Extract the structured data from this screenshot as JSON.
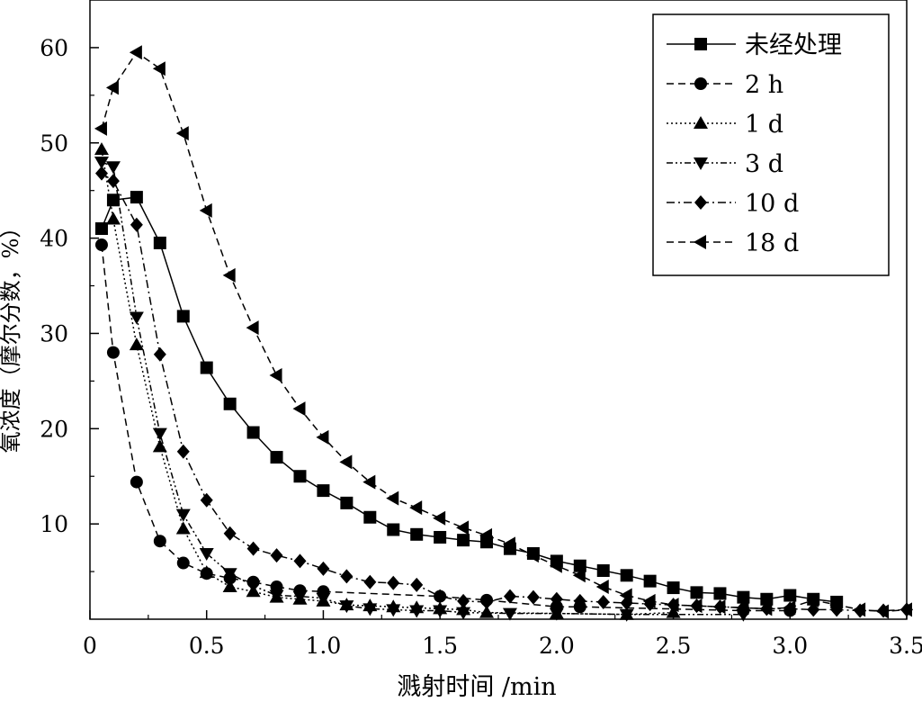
{
  "chart_data": {
    "type": "line",
    "title": "",
    "xlabel": "溅射时间 /min",
    "ylabel": "氧浓度（摩尔分数，%）",
    "xlim": [
      0,
      3.5
    ],
    "ylim": [
      0,
      65
    ],
    "xticks": [
      "0",
      "0.5",
      "1.0",
      "1.5",
      "2.0",
      "2.5",
      "3.0",
      "3.5"
    ],
    "yticks": [
      "10",
      "20",
      "30",
      "40",
      "50",
      "60"
    ],
    "grid": false,
    "legend_position": "top-right",
    "series": [
      {
        "name": "未经处理",
        "marker": "square",
        "dash": "solid",
        "x": [
          0.05,
          0.1,
          0.2,
          0.3,
          0.4,
          0.5,
          0.6,
          0.7,
          0.8,
          0.9,
          1.0,
          1.1,
          1.2,
          1.3,
          1.4,
          1.5,
          1.6,
          1.7,
          1.8,
          1.9,
          2.0,
          2.1,
          2.2,
          2.3,
          2.4,
          2.5,
          2.6,
          2.7,
          2.8,
          2.9,
          3.0,
          3.1,
          3.2
        ],
        "y": [
          41,
          44,
          44.3,
          39.5,
          31.8,
          26.4,
          22.6,
          19.6,
          17.0,
          15.0,
          13.5,
          12.2,
          10.7,
          9.4,
          8.9,
          8.6,
          8.3,
          8.1,
          7.4,
          6.9,
          6.1,
          5.6,
          5.1,
          4.6,
          4.0,
          3.3,
          2.8,
          2.7,
          2.3,
          2.1,
          2.5,
          2.1,
          1.8
        ]
      },
      {
        "name": "2 h",
        "marker": "circle",
        "dash": "dashed",
        "x": [
          0.05,
          0.1,
          0.2,
          0.3,
          0.4,
          0.5,
          0.6,
          0.7,
          0.8,
          0.9,
          1.0,
          1.5,
          1.7,
          2.0,
          2.1,
          2.8,
          3.0
        ],
        "y": [
          39.3,
          28,
          14.4,
          8.2,
          5.9,
          4.8,
          4.3,
          3.9,
          3.4,
          3.0,
          2.9,
          2.4,
          2.0,
          1.3,
          1.3,
          0.9,
          0.9
        ]
      },
      {
        "name": "1 d",
        "marker": "triangle-up",
        "dash": "dotted",
        "x": [
          0.05,
          0.1,
          0.2,
          0.3,
          0.4,
          0.5,
          0.6,
          0.7,
          0.8,
          0.9,
          1.0,
          1.1,
          1.2,
          1.3,
          1.4,
          1.5,
          1.6,
          1.7,
          2.0,
          2.3,
          2.5
        ],
        "y": [
          49.3,
          42,
          28.8,
          18.1,
          9.5,
          4.9,
          3.4,
          2.9,
          2.3,
          2.1,
          1.9,
          1.5,
          1.4,
          1.3,
          1.2,
          1.1,
          1.0,
          0.7,
          0.6,
          0.5,
          0.7
        ]
      },
      {
        "name": "3 d",
        "marker": "triangle-down",
        "dash": "dash-dot-dot",
        "x": [
          0.05,
          0.1,
          0.2,
          0.3,
          0.4,
          0.5,
          0.6,
          0.7,
          0.8,
          0.9,
          1.0,
          1.1,
          1.2,
          1.3,
          1.4,
          1.5,
          1.6,
          1.8,
          2.0,
          2.3,
          2.8
        ],
        "y": [
          48,
          47.5,
          31.7,
          19.5,
          11.0,
          6.9,
          4.8,
          3.5,
          2.5,
          2.4,
          2.2,
          1.4,
          1.1,
          1.0,
          0.9,
          0.9,
          0.7,
          0.6,
          0.6,
          0.5,
          0.5
        ]
      },
      {
        "name": "10 d",
        "marker": "diamond",
        "dash": "dash-dot",
        "x": [
          0.05,
          0.1,
          0.2,
          0.3,
          0.4,
          0.5,
          0.6,
          0.7,
          0.8,
          0.9,
          1.0,
          1.1,
          1.2,
          1.3,
          1.4,
          1.5,
          1.6,
          1.7,
          1.8,
          1.9,
          2.0,
          2.1,
          2.2,
          2.3,
          2.4,
          2.5,
          2.6,
          2.7,
          2.8,
          2.9,
          3.0,
          3.1,
          3.2,
          3.3,
          3.4,
          3.5
        ],
        "y": [
          46.8,
          46,
          41.4,
          27.8,
          17.6,
          12.5,
          9.0,
          7.4,
          6.7,
          6.1,
          5.3,
          4.5,
          3.9,
          3.8,
          3.6,
          2.4,
          1.9,
          1.8,
          2.4,
          2.3,
          2.1,
          1.9,
          1.8,
          1.7,
          1.6,
          1.5,
          1.4,
          1.3,
          1.2,
          1.1,
          1.1,
          1.0,
          1.0,
          0.9,
          0.9,
          1.0
        ]
      },
      {
        "name": "18 d",
        "marker": "triangle-left",
        "dash": "dashed",
        "x": [
          0.05,
          0.1,
          0.2,
          0.3,
          0.4,
          0.5,
          0.6,
          0.7,
          0.8,
          0.9,
          1.0,
          1.1,
          1.2,
          1.3,
          1.4,
          1.5,
          1.6,
          1.7,
          1.8,
          1.9,
          2.0,
          2.1,
          2.2,
          2.3,
          2.4,
          2.5,
          2.6,
          2.7,
          2.8,
          2.9,
          3.0,
          3.1,
          3.2,
          3.3,
          3.4,
          3.5
        ],
        "y": [
          51.5,
          55.8,
          59.5,
          57.8,
          51,
          42.9,
          36.1,
          30.6,
          25.6,
          22.1,
          19.1,
          16.5,
          14.4,
          12.7,
          11.7,
          10.6,
          9.6,
          8.8,
          7.9,
          6.7,
          5.6,
          4.6,
          3.4,
          2.5,
          1.9,
          1.5,
          1.4,
          1.3,
          1.2,
          1.1,
          1.2,
          2.0,
          1.5,
          1.0,
          0.8,
          1.0
        ]
      }
    ]
  }
}
